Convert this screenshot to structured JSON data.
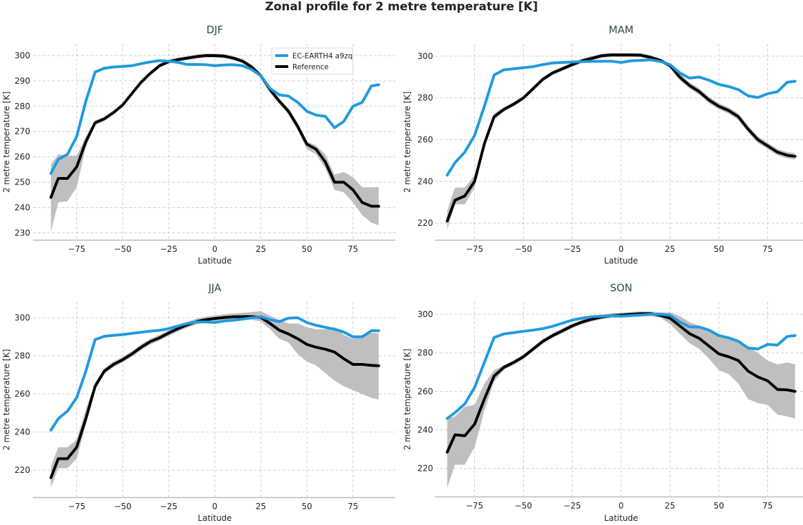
{
  "chart_data": {
    "title": "Zonal profile for 2 metre temperature [K]",
    "type": "line",
    "legend": {
      "placement": "upper-right of DJF panel",
      "entries": [
        "EC-EARTH4 a9zq",
        "Reference"
      ]
    },
    "colors": {
      "model": "#1f9ae0",
      "reference": "#000000",
      "band": "#bfbfbf",
      "panel_title": "#2e4a4a"
    },
    "grid": true,
    "x": [
      -89,
      -85,
      -80,
      -75,
      -70,
      -65,
      -60,
      -55,
      -50,
      -45,
      -40,
      -35,
      -30,
      -25,
      -20,
      -15,
      -10,
      -5,
      0,
      5,
      10,
      15,
      20,
      25,
      30,
      35,
      40,
      45,
      50,
      55,
      60,
      65,
      70,
      75,
      80,
      85,
      89
    ],
    "xlim": [
      -98,
      98
    ],
    "xticks": [
      -75,
      -50,
      -25,
      0,
      25,
      50,
      75
    ],
    "panels": [
      {
        "title": "DJF",
        "xlabel": "Latitude",
        "ylabel": "2 metre temperature [K]",
        "ylim": [
          227.1,
          304.6
        ],
        "yticks": [
          230,
          240,
          250,
          260,
          270,
          280,
          290,
          300
        ],
        "series": [
          {
            "name": "EC-EARTH4 a9zq",
            "values": [
              253.5,
              259,
              261,
              268,
              282,
              293.5,
              295,
              295.5,
              295.7,
              296,
              296.8,
              297.5,
              298,
              297.8,
              297.3,
              296.5,
              296.5,
              296.4,
              296,
              296.3,
              296.4,
              296,
              294.5,
              292,
              287,
              284.5,
              284,
              281.5,
              278,
              276.5,
              276,
              271.5,
              274,
              280,
              281.5,
              288,
              288.5
            ]
          },
          {
            "name": "Reference",
            "values": [
              244,
              251.5,
              251.5,
              256,
              266,
              273.5,
              275,
              277.5,
              280.5,
              285,
              289.5,
              293,
              296,
              297.6,
              298.4,
              299,
              299.6,
              300,
              300,
              299.8,
              299,
              297.8,
              295.5,
              292,
              286.5,
              282,
              278,
              272,
              265,
              263,
              258,
              250,
              250,
              247,
              242,
              240.5,
              240.5
            ]
          }
        ],
        "band_lower": [
          230.5,
          242,
          242.5,
          248,
          264,
          272.5,
          274.2,
          276.7,
          279.7,
          284.2,
          288.7,
          292.2,
          295.2,
          296.8,
          297.6,
          298.2,
          298.8,
          299.2,
          299.2,
          299,
          298.2,
          297,
          294.7,
          291.2,
          285.5,
          281,
          276.8,
          270.5,
          263,
          261,
          255.5,
          247,
          246,
          242,
          237,
          234,
          233
        ],
        "band_upper": [
          257,
          261,
          260.5,
          260.5,
          268,
          274.5,
          275.8,
          278.3,
          281.3,
          285.8,
          290.3,
          293.8,
          296.8,
          298.4,
          299.2,
          299.8,
          300.4,
          300.8,
          300.8,
          300.6,
          299.8,
          298.6,
          296.3,
          292.8,
          287.5,
          283,
          279.2,
          273.5,
          266,
          264.5,
          261,
          253,
          254,
          252,
          248,
          248,
          248
        ]
      },
      {
        "title": "MAM",
        "xlabel": "Latitude",
        "ylabel": "2 metre temperature [K]",
        "ylim": [
          211.8,
          305.9
        ],
        "yticks": [
          220,
          240,
          260,
          280,
          300
        ],
        "series": [
          {
            "name": "EC-EARTH4 a9zq",
            "values": [
              243,
              249,
              254,
              262,
              276,
              291,
              293.5,
              294,
              294.5,
              295,
              296,
              296.8,
              297,
              297.2,
              297.4,
              297.5,
              297.6,
              297.6,
              297,
              297.8,
              298,
              298.3,
              297.5,
              296,
              292,
              289.5,
              290,
              288.5,
              286.5,
              285.5,
              284,
              281,
              280.2,
              282,
              283,
              287.5,
              288
            ]
          },
          {
            "name": "Reference",
            "values": [
              221,
              231,
              233,
              240,
              258,
              271,
              274.5,
              277,
              280,
              284.5,
              289,
              292,
              294,
              296,
              297.8,
              299,
              300.2,
              300.6,
              300.6,
              300.6,
              300.5,
              299.5,
              298,
              295.5,
              290,
              286,
              283,
              279,
              276,
              274,
              271,
              265,
              260,
              257,
              254,
              252.5,
              252
            ]
          }
        ],
        "band_lower": [
          217,
          229,
          229,
          237,
          256,
          269.5,
          273.5,
          276,
          279,
          283.5,
          288,
          291,
          293,
          295,
          296.8,
          298,
          299.2,
          299.6,
          299.6,
          299.6,
          299.5,
          298.5,
          297,
          294.5,
          288.5,
          284.5,
          281.5,
          277.5,
          274.5,
          272.5,
          269.5,
          263.5,
          258.5,
          255.5,
          252.5,
          251,
          250.5
        ],
        "band_upper": [
          226,
          237,
          237,
          243,
          260,
          272.5,
          275.5,
          278,
          281,
          285.5,
          290,
          293,
          295,
          297,
          298.8,
          300,
          301.2,
          301.6,
          301.6,
          301.6,
          301.5,
          300.5,
          299,
          296.5,
          291.5,
          287.5,
          284.5,
          280.5,
          277.5,
          275.5,
          272.5,
          266.5,
          261.5,
          258.5,
          255.5,
          254,
          253.5
        ]
      },
      {
        "title": "JJA",
        "xlabel": "Latitude",
        "ylabel": "2 metre temperature [K]",
        "ylim": [
          205.6,
          308.3
        ],
        "yticks": [
          220,
          240,
          260,
          280,
          300
        ],
        "series": [
          {
            "name": "EC-EARTH4 a9zq",
            "values": [
              241,
              247,
              251,
              258,
              272,
              288.5,
              290.3,
              290.8,
              291.2,
              291.8,
              292.4,
              293,
              293.4,
              294.3,
              295.7,
              297,
              297.8,
              297.8,
              297.5,
              298.3,
              298.7,
              299.3,
              300,
              300.5,
              299,
              298,
              299.8,
              300,
              297.5,
              296,
              295,
              294,
              292.5,
              290,
              290,
              293.2,
              293.2
            ]
          },
          {
            "name": "Reference",
            "values": [
              216,
              226,
              226,
              232,
              247,
              264,
              272,
              275.5,
              278,
              281,
              284.5,
              287.5,
              289.5,
              292,
              294.3,
              296.3,
              298,
              299,
              299.6,
              300.1,
              300.5,
              300.6,
              300.6,
              300.2,
              297,
              293.5,
              291.5,
              289,
              286,
              284.5,
              283.5,
              282,
              278.5,
              275.5,
              275.5,
              275,
              274.8
            ]
          }
        ],
        "band_lower": [
          211,
          221,
          221,
          226,
          244,
          262,
          270.5,
          274,
          276.5,
          279.5,
          283,
          286,
          288,
          290.5,
          292.8,
          294.8,
          296.5,
          297.5,
          298,
          298.5,
          298.8,
          299,
          299,
          298,
          294,
          289,
          287,
          281,
          277,
          275,
          271,
          267,
          264,
          262,
          260,
          258,
          257
        ],
        "band_upper": [
          222,
          232,
          232,
          236,
          252,
          266,
          273.5,
          277,
          279.5,
          282.5,
          286,
          289,
          291,
          293.5,
          295.8,
          297.8,
          299.5,
          300.5,
          301.2,
          301.8,
          302.3,
          302.6,
          303,
          303.5,
          301,
          299,
          297,
          297,
          295,
          294,
          294,
          295,
          291,
          289,
          291,
          292,
          292
        ]
      },
      {
        "title": "SON",
        "xlabel": "Latitude",
        "ylabel": "2 metre temperature [K]",
        "ylim": [
          205.3,
          306.4
        ],
        "yticks": [
          220,
          240,
          260,
          280,
          300
        ],
        "series": [
          {
            "name": "EC-EARTH4 a9zq",
            "values": [
              246,
              249,
              253.5,
              262,
              275,
              288,
              289.8,
              290.5,
              291.2,
              291.8,
              292.6,
              293.8,
              295.4,
              297,
              298,
              298.7,
              299,
              299.3,
              299,
              299.3,
              299.6,
              300,
              300,
              299.5,
              296,
              293.5,
              293.4,
              291.8,
              289,
              287.8,
              286,
              282.5,
              282,
              284.4,
              284,
              288.5,
              289
            ]
          },
          {
            "name": "Reference",
            "values": [
              228.5,
              237.5,
              237,
              243,
              256,
              268,
              272.5,
              275,
              278,
              282,
              286,
              289,
              291.5,
              294,
              296,
              297.5,
              298.6,
              299.3,
              299.6,
              300,
              300.3,
              300.3,
              299.5,
              298,
              294,
              290,
              287.5,
              283.5,
              279.5,
              278,
              276,
              270.5,
              267.5,
              265.5,
              261,
              260.8,
              260
            ]
          }
        ],
        "band_lower": [
          210,
          222,
          222,
          231,
          250,
          265,
          271.3,
          273.8,
          276.8,
          280.8,
          284.8,
          287.8,
          290.3,
          292.8,
          294.8,
          296.3,
          297.4,
          298.1,
          298.4,
          298.8,
          299.1,
          299.1,
          298.3,
          295,
          290,
          285,
          282,
          277,
          271,
          269,
          264,
          256,
          254,
          253,
          248,
          247,
          246
        ],
        "band_upper": [
          246,
          247,
          252,
          253,
          264,
          271,
          273.7,
          276.2,
          279.2,
          283.2,
          287.2,
          290.2,
          292.7,
          295.2,
          297.2,
          298.7,
          299.8,
          300.5,
          300.8,
          301.2,
          301.5,
          301.5,
          301,
          301,
          299,
          296,
          294,
          292,
          289,
          288,
          286,
          283,
          280,
          276,
          274,
          275,
          274
        ]
      }
    ]
  }
}
